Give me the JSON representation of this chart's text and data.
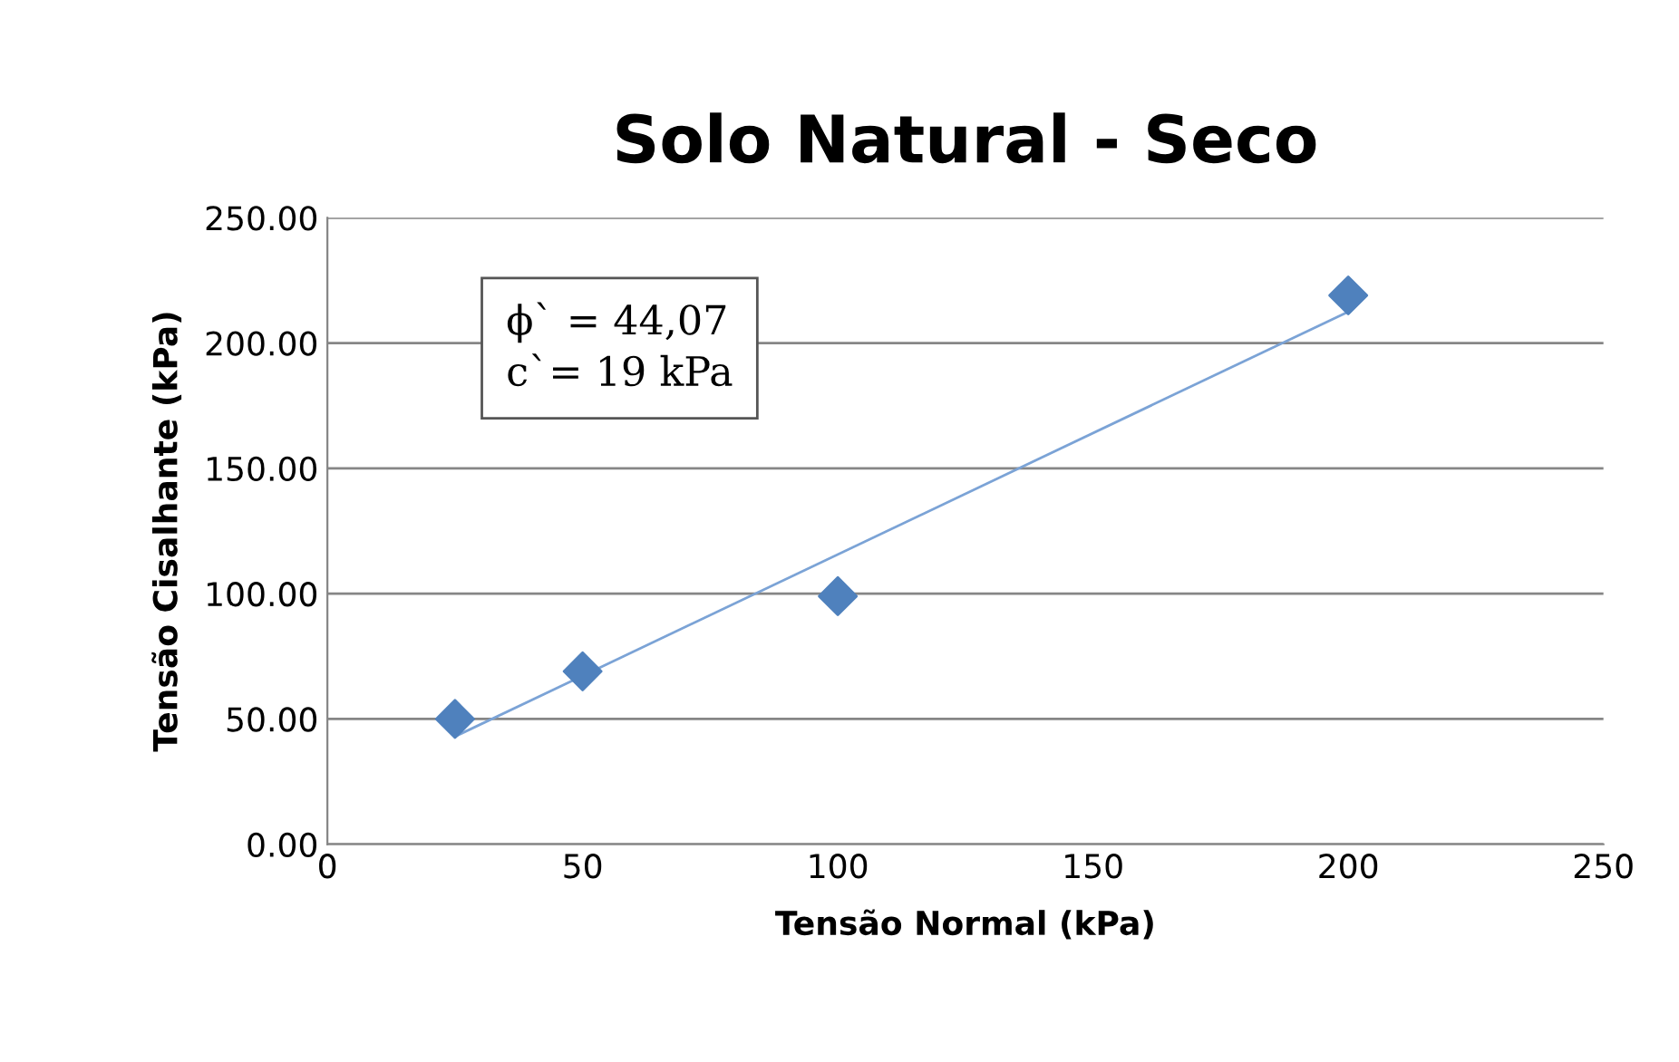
{
  "chart_data": {
    "type": "scatter",
    "title": "Solo Natural - Seco",
    "xlabel": "Tensão Normal (kPa)",
    "ylabel": "Tensão Cisalhante (kPa)",
    "x": [
      25,
      50,
      100,
      200
    ],
    "series": [
      {
        "color": "#4f81bd",
        "values": [
          50,
          69,
          99,
          219
        ],
        "marker": "diamond"
      },
      {
        "type": "line",
        "color": "#7ba3d6",
        "x": [
          25,
          200
        ],
        "values": [
          43,
          212.5
        ],
        "marker": "none"
      }
    ],
    "xlim": [
      0,
      250
    ],
    "xticks": [
      0,
      50,
      100,
      150,
      200,
      250
    ],
    "ylim": [
      0,
      250
    ],
    "yticks": [
      {
        "value": 0,
        "label": "0.00"
      },
      {
        "value": 50,
        "label": "50.00"
      },
      {
        "value": 100,
        "label": "100.00"
      },
      {
        "value": 150,
        "label": "150.00"
      },
      {
        "value": 200,
        "label": "200.00"
      },
      {
        "value": 250,
        "label": "250.00"
      }
    ],
    "grid": "y",
    "annotations": [
      "ϕ` = 44,07",
      "c`= 19 kPa"
    ]
  }
}
